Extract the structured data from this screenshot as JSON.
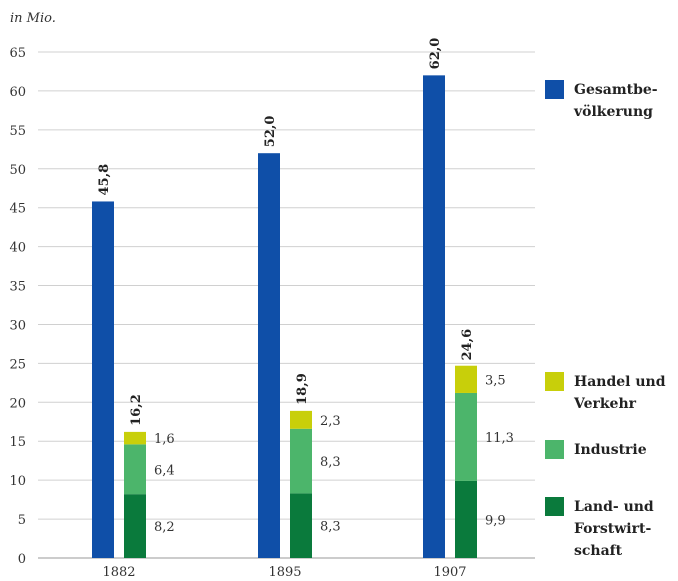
{
  "chart_data": {
    "type": "bar",
    "unit_label": "in Mio.",
    "categories": [
      "1882",
      "1895",
      "1907"
    ],
    "ylim": [
      0,
      65
    ],
    "yticks": [
      0,
      5,
      10,
      15,
      20,
      25,
      30,
      35,
      40,
      45,
      50,
      55,
      60,
      65
    ],
    "grid": true,
    "total_series": {
      "name": "Gesamtbevölkerung",
      "legend_lines": [
        "Gesamtbe-",
        "völkerung"
      ],
      "color": "#0f4fa8",
      "values": [
        45.8,
        52.0,
        62.0
      ],
      "labels": [
        "45,8",
        "52,0",
        "62,0"
      ]
    },
    "stacked_totals": {
      "values": [
        16.2,
        18.9,
        24.6
      ],
      "labels": [
        "16,2",
        "18,9",
        "24,6"
      ]
    },
    "stack_series": [
      {
        "name": "Land- und Forstwirtschaft",
        "legend_lines": [
          "Land- und",
          "Forstwirt-",
          "schaft"
        ],
        "color": "#0a7a3c",
        "values": [
          8.2,
          8.3,
          9.9
        ],
        "labels": [
          "8,2",
          "8,3",
          "9,9"
        ]
      },
      {
        "name": "Industrie",
        "legend_lines": [
          "Industrie"
        ],
        "color": "#4cb56b",
        "values": [
          6.4,
          8.3,
          11.3
        ],
        "labels": [
          "6,4",
          "8,3",
          "11,3"
        ]
      },
      {
        "name": "Handel und Verkehr",
        "legend_lines": [
          "Handel und",
          "Verkehr"
        ],
        "color": "#c8cf0a",
        "values": [
          1.6,
          2.3,
          3.5
        ],
        "labels": [
          "1,6",
          "2,3",
          "3,5"
        ]
      }
    ]
  }
}
